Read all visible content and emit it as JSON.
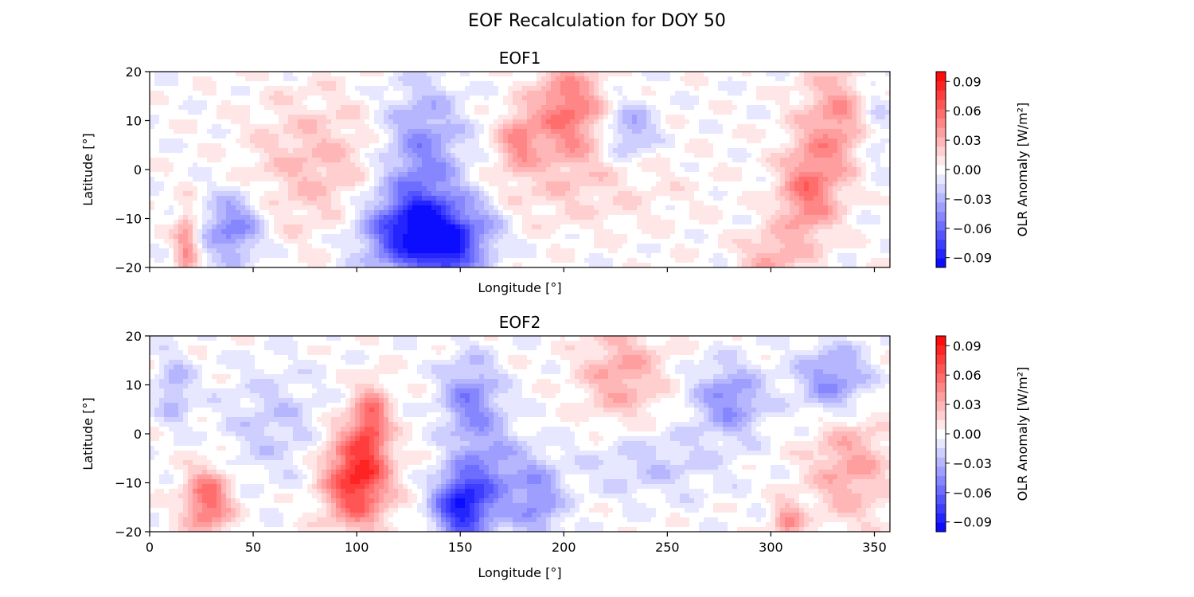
{
  "title": "EOF Recalculation for DOY 50",
  "colormap": {
    "name": "bwr",
    "low": "#0000ff",
    "mid": "#ffffff",
    "high": "#ff0000"
  },
  "chart_data": [
    {
      "type": "heatmap",
      "title": "EOF1",
      "xlabel": "Longitude [°]",
      "ylabel": "Latitude [°]",
      "xlim": [
        0,
        357.5
      ],
      "ylim": [
        -20,
        20
      ],
      "xticks": [
        0,
        50,
        100,
        150,
        200,
        250,
        300,
        350
      ],
      "show_xticklabels": false,
      "yticks": [
        -20,
        -10,
        0,
        10,
        20
      ],
      "colorbar": {
        "label": "OLR Anomaly [W/m²]",
        "range": [
          -0.1,
          0.1
        ],
        "levels": 21,
        "ticks": [
          "−0.09",
          "−0.06",
          "−0.03",
          "0.00",
          "0.03",
          "0.06",
          "0.09"
        ]
      },
      "blobs": [
        {
          "lon": 130,
          "lat": -13,
          "amp": -0.095,
          "sx": 18,
          "sy": 6
        },
        {
          "lon": 145,
          "lat": -17,
          "amp": -0.04,
          "sx": 8,
          "sy": 4
        },
        {
          "lon": 132,
          "lat": 3,
          "amp": -0.045,
          "sx": 14,
          "sy": 10
        },
        {
          "lon": 40,
          "lat": -12,
          "amp": -0.05,
          "sx": 10,
          "sy": 5
        },
        {
          "lon": 232,
          "lat": 8,
          "amp": -0.035,
          "sx": 9,
          "sy": 4
        },
        {
          "lon": 350,
          "lat": 10,
          "amp": -0.02,
          "sx": 6,
          "sy": 8
        },
        {
          "lon": 80,
          "lat": 1,
          "amp": 0.025,
          "sx": 22,
          "sy": 10
        },
        {
          "lon": 178,
          "lat": 6,
          "amp": 0.04,
          "sx": 7,
          "sy": 4
        },
        {
          "lon": 202,
          "lat": 12,
          "amp": 0.055,
          "sx": 12,
          "sy": 7
        },
        {
          "lon": 318,
          "lat": -5,
          "amp": 0.05,
          "sx": 10,
          "sy": 7
        },
        {
          "lon": 332,
          "lat": 10,
          "amp": 0.04,
          "sx": 12,
          "sy": 8
        },
        {
          "lon": 18,
          "lat": -15,
          "amp": 0.045,
          "sx": 4,
          "sy": 5
        },
        {
          "lon": 200,
          "lat": -4,
          "amp": 0.015,
          "sx": 40,
          "sy": 6
        },
        {
          "lon": 300,
          "lat": -18,
          "amp": 0.03,
          "sx": 10,
          "sy": 4
        },
        {
          "lon": 160,
          "lat": -12,
          "amp": -0.02,
          "sx": 10,
          "sy": 5
        }
      ]
    },
    {
      "type": "heatmap",
      "title": "EOF2",
      "xlabel": "Longitude [°]",
      "ylabel": "Latitude [°]",
      "xlim": [
        0,
        357.5
      ],
      "ylim": [
        -20,
        20
      ],
      "xticks": [
        0,
        50,
        100,
        150,
        200,
        250,
        300,
        350
      ],
      "show_xticklabels": true,
      "yticks": [
        -20,
        -10,
        0,
        10,
        20
      ],
      "colorbar": {
        "label": "OLR Anomaly [W/m²]",
        "range": [
          -0.1,
          0.1
        ],
        "levels": 21,
        "ticks": [
          "−0.09",
          "−0.06",
          "−0.03",
          "0.00",
          "0.03",
          "0.06",
          "0.09"
        ]
      },
      "blobs": [
        {
          "lon": 100,
          "lat": -9,
          "amp": 0.085,
          "sx": 11,
          "sy": 7
        },
        {
          "lon": 107,
          "lat": 3,
          "amp": 0.05,
          "sx": 6,
          "sy": 5
        },
        {
          "lon": 28,
          "lat": -14,
          "amp": 0.06,
          "sx": 8,
          "sy": 5
        },
        {
          "lon": 150,
          "lat": -15,
          "amp": -0.08,
          "sx": 9,
          "sy": 5
        },
        {
          "lon": 165,
          "lat": -9,
          "amp": -0.04,
          "sx": 12,
          "sy": 7
        },
        {
          "lon": 155,
          "lat": 7,
          "amp": -0.045,
          "sx": 10,
          "sy": 6
        },
        {
          "lon": 188,
          "lat": -14,
          "amp": -0.04,
          "sx": 8,
          "sy": 6
        },
        {
          "lon": 280,
          "lat": 7,
          "amp": -0.045,
          "sx": 12,
          "sy": 5
        },
        {
          "lon": 330,
          "lat": 11,
          "amp": -0.045,
          "sx": 12,
          "sy": 5
        },
        {
          "lon": 12,
          "lat": 9,
          "amp": -0.03,
          "sx": 6,
          "sy": 5
        },
        {
          "lon": 60,
          "lat": 2,
          "amp": -0.02,
          "sx": 18,
          "sy": 8
        },
        {
          "lon": 228,
          "lat": 12,
          "amp": 0.035,
          "sx": 14,
          "sy": 7
        },
        {
          "lon": 338,
          "lat": -7,
          "amp": 0.035,
          "sx": 14,
          "sy": 8
        },
        {
          "lon": 242,
          "lat": -6,
          "amp": -0.02,
          "sx": 25,
          "sy": 5
        },
        {
          "lon": 308,
          "lat": -18,
          "amp": 0.04,
          "sx": 5,
          "sy": 3
        }
      ]
    }
  ]
}
